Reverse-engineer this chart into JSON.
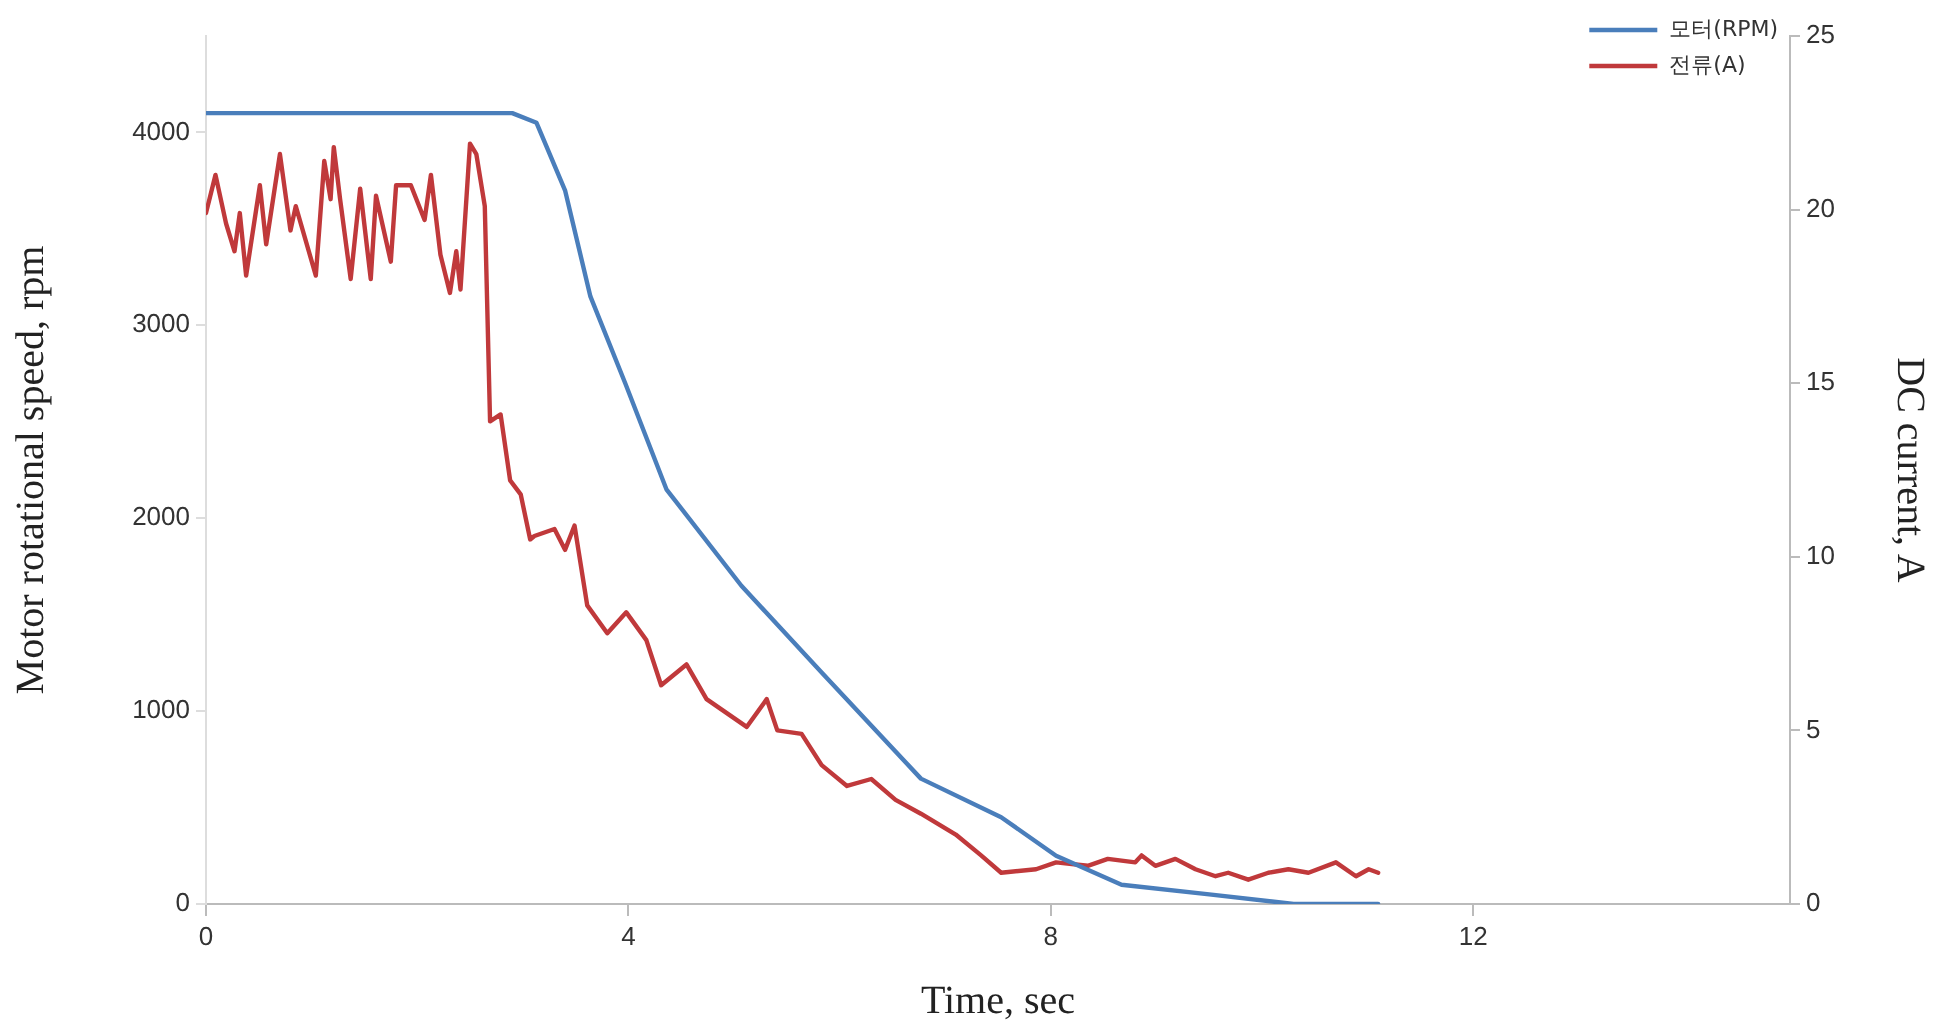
{
  "chart_data": {
    "type": "line",
    "xlabel": "Time, sec",
    "ylabel": "Motor rotational speed, rpm",
    "y2label": "DC current, A",
    "xlim": [
      0,
      15
    ],
    "xticks": [
      0,
      4,
      8,
      12
    ],
    "ylim": [
      0,
      4500
    ],
    "yticks": [
      0,
      1000,
      2000,
      3000,
      4000
    ],
    "y2lim": [
      0,
      25
    ],
    "y2ticks": [
      0,
      5,
      10,
      15,
      20,
      25
    ],
    "grid": false,
    "legend": "top right",
    "marker": "none",
    "line_style": "solid",
    "series": [
      {
        "name": "모터(RPM)",
        "color": "#4a7ebb",
        "x": [
          0,
          1,
          2,
          2.9,
          3.13,
          3.4,
          3.64,
          3.97,
          4.36,
          5.07,
          5.83,
          6.77,
          7.53,
          8.05,
          8.67,
          9.5,
          10.3,
          11.1
        ],
        "values": [
          4100,
          4100,
          4100,
          4100,
          4050,
          3700,
          3150,
          2700,
          2150,
          1650,
          1200,
          650,
          450,
          250,
          100,
          50,
          0,
          0
        ]
      },
      {
        "name": "전류(A)",
        "color": "#c0393b",
        "axis": "y2",
        "x": [
          0,
          0.09,
          0.19,
          0.27,
          0.32,
          0.38,
          0.51,
          0.57,
          0.7,
          0.8,
          0.85,
          1.04,
          1.12,
          1.18,
          1.21,
          1.27,
          1.37,
          1.46,
          1.56,
          1.61,
          1.75,
          1.8,
          1.94,
          2.07,
          2.13,
          2.22,
          2.31,
          2.37,
          2.41,
          2.5,
          2.56,
          2.64,
          2.69,
          2.79,
          2.88,
          2.98,
          3.07,
          3.11,
          3.3,
          3.4,
          3.49,
          3.61,
          3.8,
          3.98,
          4.17,
          4.31,
          4.55,
          4.74,
          5.12,
          5.31,
          5.41,
          5.64,
          5.83,
          6.07,
          6.3,
          6.53,
          6.77,
          7.1,
          7.34,
          7.53,
          7.86,
          8.05,
          8.35,
          8.54,
          8.8,
          8.86,
          8.99,
          9.18,
          9.37,
          9.56,
          9.68,
          9.87,
          10.06,
          10.25,
          10.44,
          10.7,
          10.89,
          11.01,
          11.1
        ],
        "values": [
          19.9,
          21.0,
          19.6,
          18.8,
          19.9,
          18.1,
          20.7,
          19.0,
          21.6,
          19.4,
          20.1,
          18.1,
          21.4,
          20.3,
          21.8,
          20.3,
          18.0,
          20.6,
          18.0,
          20.4,
          18.5,
          20.7,
          20.7,
          19.7,
          21.0,
          18.7,
          17.6,
          18.8,
          17.7,
          21.9,
          21.6,
          20.1,
          13.9,
          14.1,
          12.2,
          11.8,
          10.5,
          10.6,
          10.8,
          10.2,
          10.9,
          8.6,
          7.8,
          8.4,
          7.6,
          6.3,
          6.9,
          5.9,
          5.1,
          5.9,
          5.0,
          4.9,
          4.0,
          3.4,
          3.6,
          3.0,
          2.6,
          2.0,
          1.4,
          0.9,
          1.0,
          1.2,
          1.1,
          1.3,
          1.2,
          1.4,
          1.1,
          1.3,
          1.0,
          0.8,
          0.9,
          0.7,
          0.9,
          1.0,
          0.9,
          1.2,
          0.8,
          1.0,
          0.9
        ]
      }
    ]
  }
}
